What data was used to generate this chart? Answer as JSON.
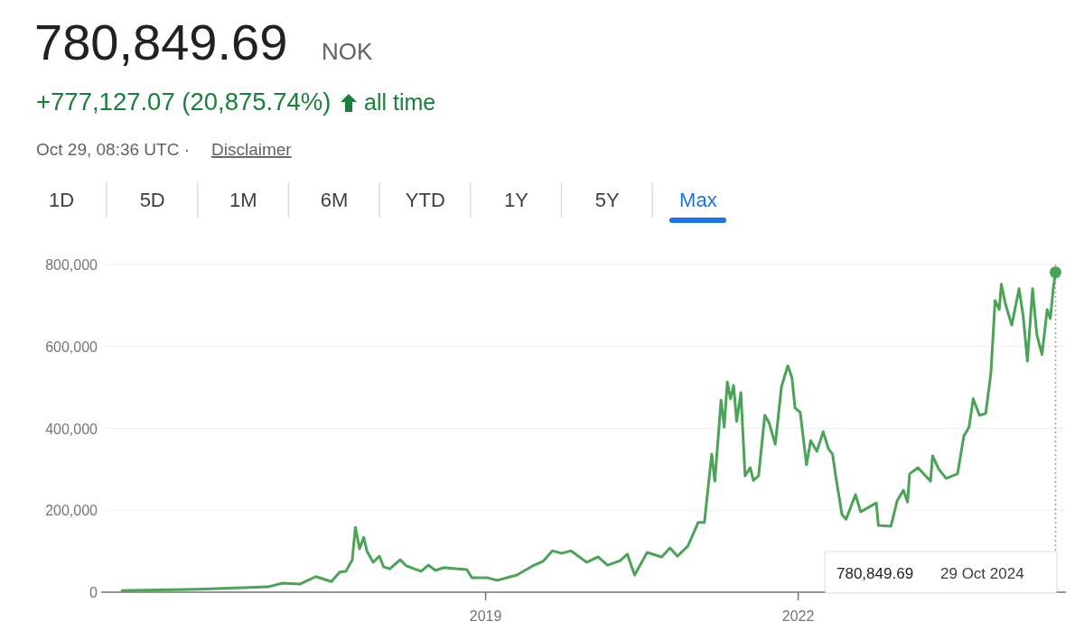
{
  "chart_data": {
    "type": "line",
    "title": "780,849.69",
    "annotations": [
      "NOK",
      "+777,127.07 (20,875.74%)",
      "all time",
      "Oct 29, 08:36 UTC ·",
      "Disclaimer",
      "1D",
      "5D",
      "1M",
      "6M",
      "YTD",
      "1Y",
      "5Y",
      "Max",
      "780,849.69",
      "29 Oct 2024"
    ],
    "xlim": [
      2015.31,
      2024.57
    ],
    "xticks": [
      2019,
      2022
    ],
    "ylim": [
      0,
      800000
    ],
    "yticks": [
      {
        "value": 0,
        "label": "0"
      },
      {
        "value": 200000,
        "label": "200,000"
      },
      {
        "value": 400000,
        "label": "400,000"
      },
      {
        "value": 600000,
        "label": "600,000"
      },
      {
        "value": 800000,
        "label": "800,000"
      }
    ],
    "grid": "y",
    "marker": "none",
    "line_style": "solid",
    "ref_lines": [
      {
        "axis": "x",
        "value": 2024.47,
        "label": null,
        "color": "#9e9e9e",
        "line_style": "dotted"
      }
    ],
    "series": [
      {
        "color": "#4aa356",
        "x": [
          2015.51,
          2016.24,
          2016.68,
          2016.91,
          2017.05,
          2017.22,
          2017.37,
          2017.52,
          2017.6,
          2017.66,
          2017.72,
          2017.75,
          2017.79,
          2017.83,
          2017.86,
          2017.92,
          2017.98,
          2018.02,
          2018.08,
          2018.18,
          2018.24,
          2018.38,
          2018.45,
          2018.52,
          2018.6,
          2018.82,
          2018.87,
          2018.96,
          2019.02,
          2019.11,
          2019.3,
          2019.45,
          2019.55,
          2019.64,
          2019.73,
          2019.82,
          2019.88,
          2019.97,
          2020.08,
          2020.17,
          2020.29,
          2020.36,
          2020.43,
          2020.55,
          2020.69,
          2020.77,
          2020.84,
          2020.94,
          2021.04,
          2021.1,
          2021.17,
          2021.2,
          2021.26,
          2021.29,
          2021.32,
          2021.35,
          2021.38,
          2021.41,
          2021.45,
          2021.49,
          2021.54,
          2021.57,
          2021.62,
          2021.68,
          2021.72,
          2021.78,
          2021.84,
          2021.9,
          2021.94,
          2021.97,
          2022.02,
          2022.08,
          2022.12,
          2022.18,
          2022.24,
          2022.29,
          2022.33,
          2022.36,
          2022.42,
          2022.46,
          2022.55,
          2022.6,
          2022.75,
          2022.77,
          2022.89,
          2022.95,
          2023.01,
          2023.05,
          2023.07,
          2023.15,
          2023.27,
          2023.29,
          2023.35,
          2023.42,
          2023.53,
          2023.59,
          2023.64,
          2023.68,
          2023.74,
          2023.8,
          2023.85,
          2023.89,
          2023.93,
          2023.95,
          2023.99,
          2024.05,
          2024.12,
          2024.16,
          2024.2,
          2024.25,
          2024.29,
          2024.34,
          2024.39,
          2024.42,
          2024.45,
          2024.47
        ],
        "values": [
          4000,
          7000,
          11000,
          13000,
          22000,
          20000,
          38000,
          26000,
          49000,
          51000,
          79000,
          158000,
          106000,
          134000,
          101000,
          73000,
          88000,
          62000,
          57000,
          79000,
          64000,
          51000,
          66000,
          53000,
          60000,
          55000,
          35000,
          35000,
          35000,
          29000,
          42000,
          64000,
          75000,
          101000,
          95000,
          101000,
          90000,
          73000,
          86000,
          66000,
          77000,
          93000,
          42000,
          97000,
          86000,
          108000,
          88000,
          112000,
          170000,
          170000,
          337000,
          271000,
          469000,
          403000,
          513000,
          472000,
          505000,
          417000,
          487000,
          284000,
          304000,
          273000,
          284000,
          432000,
          414000,
          361000,
          502000,
          553000,
          524000,
          450000,
          439000,
          311000,
          370000,
          344000,
          392000,
          350000,
          337000,
          284000,
          190000,
          178000,
          238000,
          196000,
          218000,
          163000,
          161000,
          223000,
          249000,
          220000,
          289000,
          304000,
          271000,
          333000,
          300000,
          278000,
          289000,
          381000,
          403000,
          472000,
          432000,
          436000,
          536000,
          712000,
          690000,
          752000,
          703000,
          652000,
          741000,
          674000,
          564000,
          741000,
          630000,
          580000,
          690000,
          668000,
          745000,
          780849.69
        ]
      },
      {
        "type": "scatter",
        "color": "#4aa356",
        "marker": "circle",
        "x": [
          2024.47
        ],
        "values": [
          780849.69
        ]
      }
    ]
  }
}
